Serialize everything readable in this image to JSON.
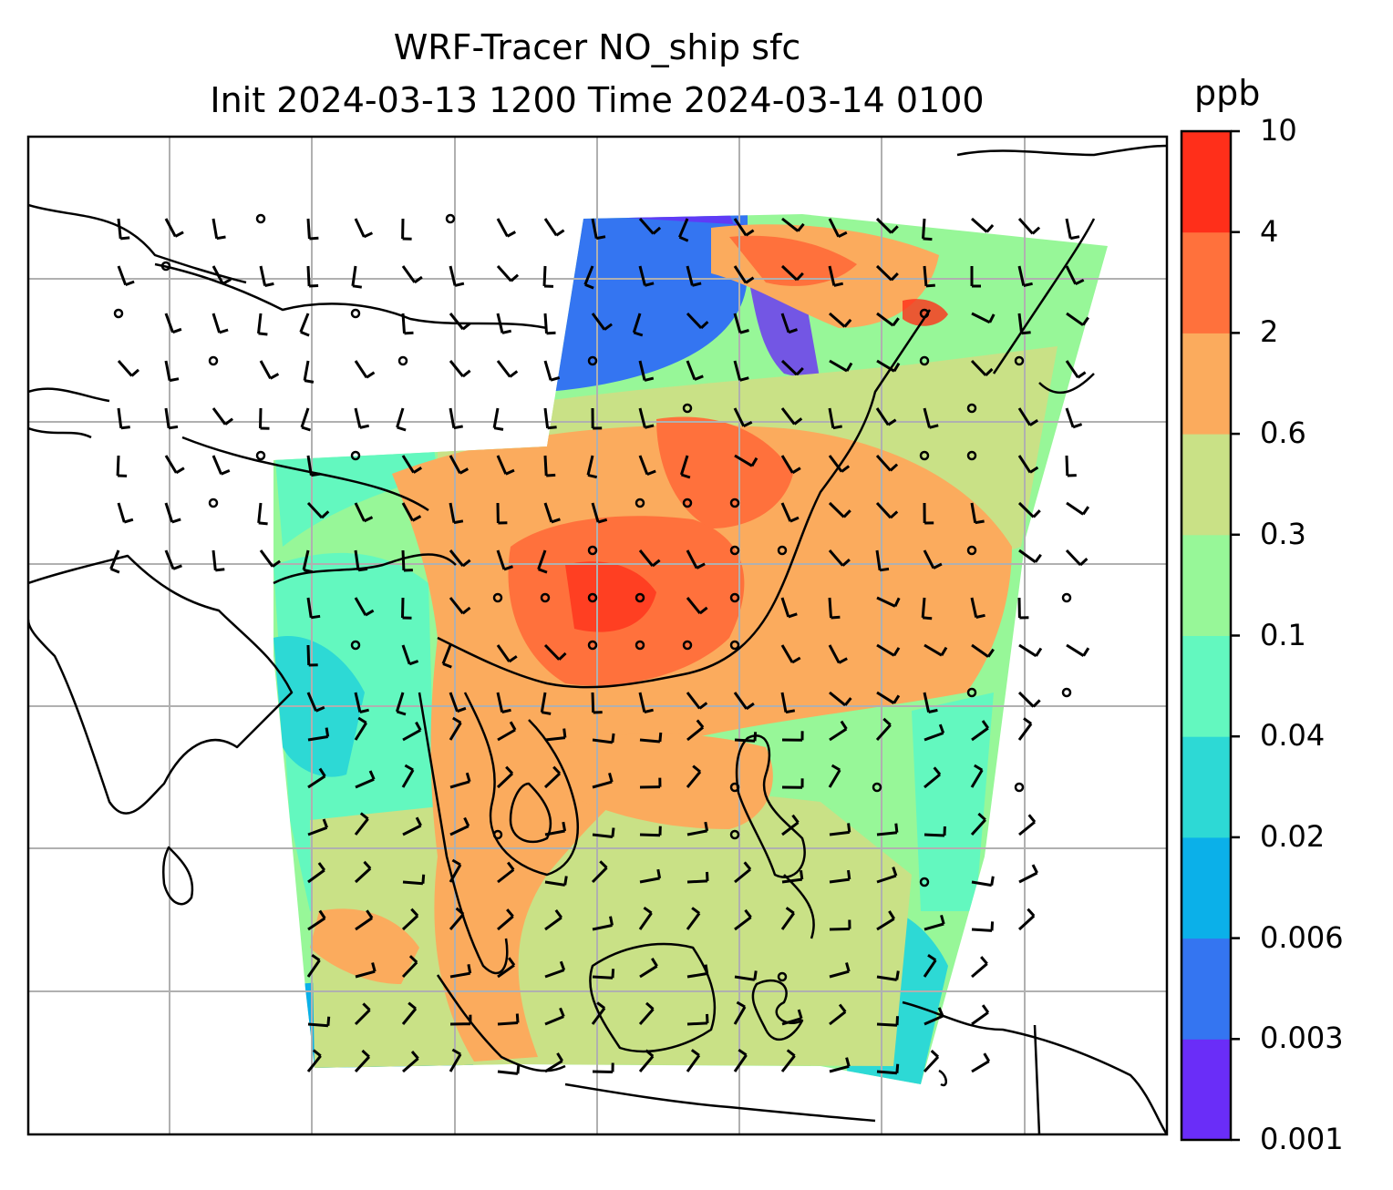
{
  "title_line1": "WRF-Tracer NO_ship sfc",
  "title_line2": "Init 2024-03-13 1200 Time 2024-03-14 0100",
  "colorbar": {
    "unit": "ppb",
    "levels": [
      "0.001",
      "0.003",
      "0.006",
      "0.02",
      "0.04",
      "0.1",
      "0.3",
      "0.6",
      "2",
      "4",
      "10"
    ],
    "colors": [
      "#6a2df8",
      "#3475f1",
      "#0bb0e9",
      "#2dd9d5",
      "#63f8bf",
      "#97f798",
      "#c9e186",
      "#fbab5d",
      "#ff713c",
      "#ff2f1a"
    ]
  },
  "map": {
    "region": "South and Southeast Asia, southern China",
    "field": "surface NO_ship tracer concentration with wind barbs",
    "gridlines": true
  }
}
